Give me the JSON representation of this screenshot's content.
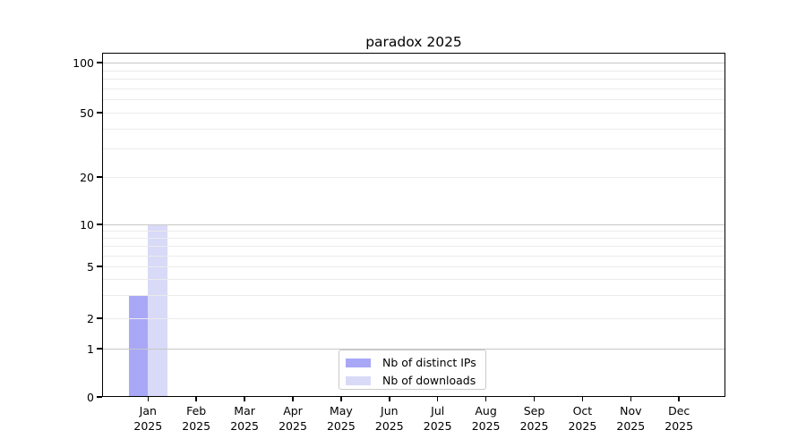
{
  "title": "paradox 2025",
  "chart_data": {
    "type": "bar",
    "title": "paradox 2025",
    "months": [
      "Jan",
      "Feb",
      "Mar",
      "Apr",
      "May",
      "Jun",
      "Jul",
      "Aug",
      "Sep",
      "Oct",
      "Nov",
      "Dec"
    ],
    "year": "2025",
    "categories": [
      "Jan 2025",
      "Feb 2025",
      "Mar 2025",
      "Apr 2025",
      "May 2025",
      "Jun 2025",
      "Jul 2025",
      "Aug 2025",
      "Sep 2025",
      "Oct 2025",
      "Nov 2025",
      "Dec 2025"
    ],
    "series": [
      {
        "name": "Nb of distinct IPs",
        "color": "#a8a8f7",
        "values": [
          3,
          0,
          0,
          0,
          0,
          0,
          0,
          0,
          0,
          0,
          0,
          0
        ]
      },
      {
        "name": "Nb of downloads",
        "color": "#d9d9f8",
        "values": [
          10,
          0,
          0,
          0,
          0,
          0,
          0,
          0,
          0,
          0,
          0,
          0
        ]
      }
    ],
    "y_ticks": [
      0,
      1,
      2,
      5,
      10,
      20,
      50,
      100
    ],
    "y_scale": "symlog",
    "ylim": [
      0,
      115
    ],
    "grid": true,
    "legend_position": "lower center"
  },
  "legend": {
    "items": [
      {
        "label": "Nb of distinct IPs",
        "color": "#a8a8f7"
      },
      {
        "label": "Nb of downloads",
        "color": "#d9d9f8"
      }
    ]
  },
  "colors": {
    "background": "#ffffff",
    "axis": "#000000",
    "grid_minor": "#ebebeb",
    "grid_major": "#c7c7c7",
    "bar_ips": "#a8a8f7",
    "bar_downloads": "#d9d9f8",
    "legend_border": "#c9c9c9",
    "text": "#000000"
  }
}
